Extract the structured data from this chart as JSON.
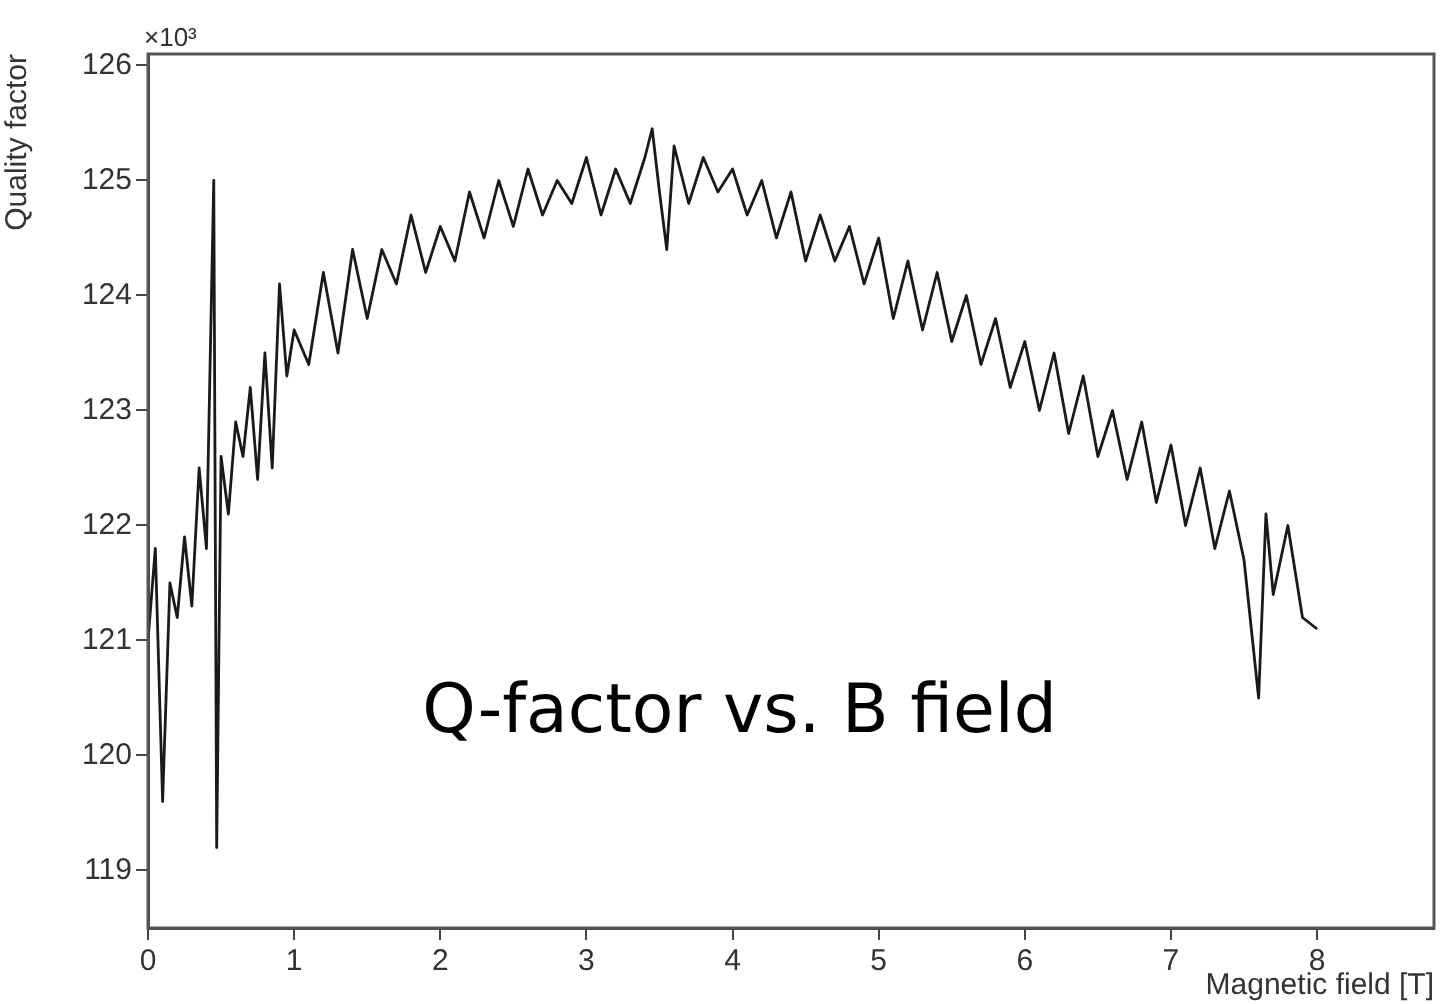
{
  "chart_data": {
    "type": "line",
    "xlabel": "Magnetic field [T]",
    "ylabel": "Quality factor",
    "annotations": [
      "Q-factor vs. B field",
      "×10³"
    ],
    "xlim": [
      0,
      8.8
    ],
    "xticks": [
      0,
      1,
      2,
      3,
      4,
      5,
      6,
      7,
      8
    ],
    "ylim": [
      118.5,
      126.1
    ],
    "yticks": [
      119,
      120,
      121,
      122,
      123,
      124,
      125,
      126
    ],
    "grid": false,
    "legend": false,
    "marker": "none",
    "line_style": "solid",
    "series": [
      {
        "color": "#1a1a1a",
        "x": [
          0,
          0.05,
          0.1,
          0.15,
          0.2,
          0.25,
          0.3,
          0.35,
          0.4,
          0.45,
          0.47,
          0.5,
          0.55,
          0.6,
          0.65,
          0.7,
          0.75,
          0.8,
          0.85,
          0.9,
          0.95,
          1.0,
          1.1,
          1.2,
          1.3,
          1.4,
          1.5,
          1.6,
          1.7,
          1.8,
          1.9,
          2.0,
          2.1,
          2.2,
          2.3,
          2.4,
          2.5,
          2.6,
          2.7,
          2.8,
          2.9,
          3.0,
          3.1,
          3.2,
          3.3,
          3.4,
          3.45,
          3.5,
          3.55,
          3.6,
          3.7,
          3.8,
          3.9,
          4.0,
          4.1,
          4.2,
          4.3,
          4.4,
          4.5,
          4.6,
          4.7,
          4.8,
          4.9,
          5.0,
          5.1,
          5.2,
          5.3,
          5.4,
          5.5,
          5.6,
          5.7,
          5.8,
          5.9,
          6.0,
          6.1,
          6.2,
          6.3,
          6.4,
          6.5,
          6.6,
          6.7,
          6.8,
          6.9,
          7.0,
          7.1,
          7.2,
          7.3,
          7.4,
          7.5,
          7.6,
          7.65,
          7.7,
          7.8,
          7.9,
          8.0
        ],
        "values": [
          121.0,
          121.8,
          119.6,
          121.5,
          121.2,
          121.9,
          121.3,
          122.5,
          121.8,
          125.0,
          119.2,
          122.6,
          122.1,
          122.9,
          122.6,
          123.2,
          122.4,
          123.5,
          122.5,
          124.1,
          123.3,
          123.7,
          123.4,
          124.2,
          123.5,
          124.4,
          123.8,
          124.4,
          124.1,
          124.7,
          124.2,
          124.6,
          124.3,
          124.9,
          124.5,
          125.0,
          124.6,
          125.1,
          124.7,
          125.0,
          124.8,
          125.2,
          124.7,
          125.1,
          124.8,
          125.2,
          125.45,
          124.9,
          124.4,
          125.3,
          124.8,
          125.2,
          124.9,
          125.1,
          124.7,
          125.0,
          124.5,
          124.9,
          124.3,
          124.7,
          124.3,
          124.6,
          124.1,
          124.5,
          123.8,
          124.3,
          123.7,
          124.2,
          123.6,
          124.0,
          123.4,
          123.8,
          123.2,
          123.6,
          123.0,
          123.5,
          122.8,
          123.3,
          122.6,
          123.0,
          122.4,
          122.9,
          122.2,
          122.7,
          122.0,
          122.5,
          121.8,
          122.3,
          121.7,
          120.5,
          122.1,
          121.4,
          122.0,
          121.2,
          121.1
        ]
      }
    ]
  }
}
